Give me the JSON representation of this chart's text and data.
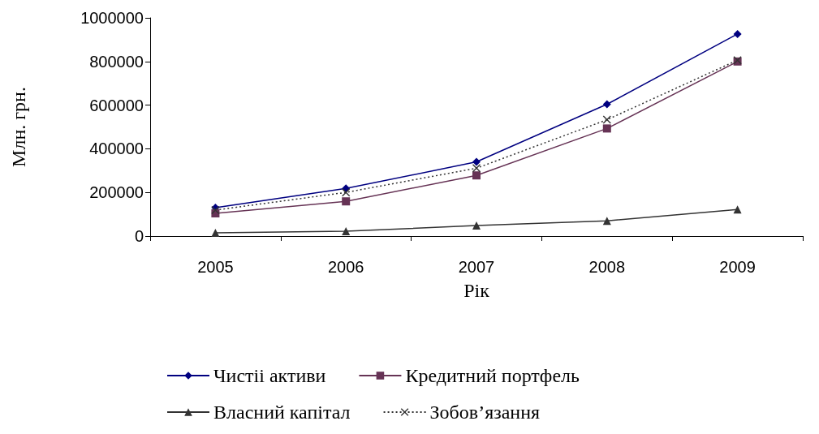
{
  "chart_data": {
    "type": "line",
    "xlabel": "Рік",
    "ylabel": "Млн. грн.",
    "categories": [
      "2005",
      "2006",
      "2007",
      "2008",
      "2009"
    ],
    "series": [
      {
        "name": "Чистіі активи",
        "color": "#000080",
        "marker": "diamond",
        "line_style": "solid",
        "values": [
          130000,
          218000,
          340000,
          604000,
          926000
        ]
      },
      {
        "name": "Кредитний портфель",
        "color": "#663355",
        "marker": "square",
        "line_style": "solid",
        "values": [
          104000,
          159000,
          278000,
          493000,
          800000
        ]
      },
      {
        "name": "Власний капітал",
        "color": "#333333",
        "marker": "triangle",
        "line_style": "solid",
        "values": [
          15000,
          22000,
          48000,
          70000,
          122000
        ]
      },
      {
        "name": "Зобов’язання",
        "color": "#333333",
        "marker": "cross",
        "line_style": "dotted",
        "values": [
          119000,
          200000,
          311000,
          533000,
          806000
        ]
      }
    ],
    "ylim": [
      0,
      1000000
    ],
    "yticks": [
      0,
      200000,
      400000,
      600000,
      800000,
      1000000
    ],
    "grid": false,
    "legend": "bottom"
  }
}
